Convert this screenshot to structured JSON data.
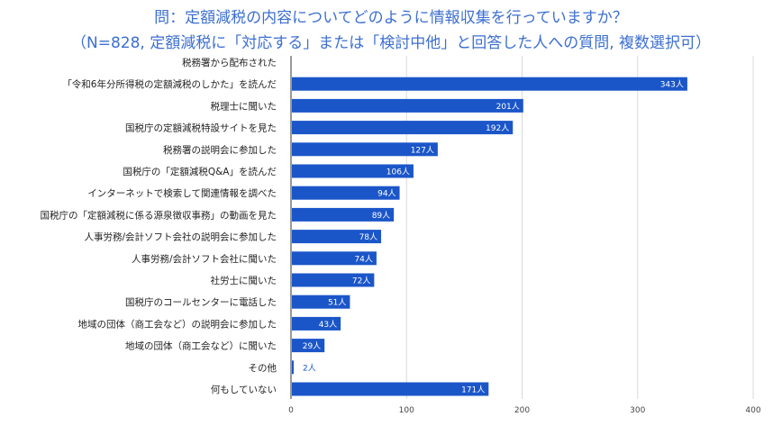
{
  "chart_data": {
    "type": "bar",
    "orientation": "horizontal",
    "title": "問：定額減税の内容についてどのように情報収集を行っていますか？",
    "subtitle": "（N=828, 定額減税に「対応する」または「検討中他」と回答した人への質問, 複数選択可）",
    "unit_suffix": "人",
    "categories": [
      "税務署から配布された",
      "「令和6年分所得税の定額減税のしかた」を読んだ",
      "税理士に聞いた",
      "国税庁の定額減税特設サイトを見た",
      "税務署の説明会に参加した",
      "国税庁の「定額減税Q&A」を読んだ",
      "インターネットで検索して関連情報を調べた",
      "国税庁の「定額減税に係る源泉徴収事務」の動画を見た",
      "人事労務/会計ソフト会社の説明会に参加した",
      "人事労務/会計ソフト会社に聞いた",
      "社労士に聞いた",
      "国税庁のコールセンターに電話した",
      "地域の団体（商工会など）の説明会に参加した",
      "地域の団体（商工会など）に聞いた",
      "その他",
      "何もしていない"
    ],
    "values": [
      null,
      343,
      201,
      192,
      127,
      106,
      94,
      89,
      78,
      74,
      72,
      51,
      43,
      29,
      2,
      171
    ],
    "data_labels": [
      "",
      "343人",
      "201人",
      "192人",
      "127人",
      "106人",
      "94人",
      "89人",
      "78人",
      "74人",
      "72人",
      "51人",
      "43人",
      "29人",
      "2人",
      "171人"
    ],
    "xlim": [
      0,
      400
    ],
    "xticks": [
      0,
      100,
      200,
      300,
      400
    ],
    "grid": true,
    "legend": "none",
    "colors": {
      "bar": "#1b56c9",
      "label_inside": "#ffffff",
      "label_outside": "#1b56c9",
      "grid": "#d9d9d9",
      "axis": "#333333"
    }
  }
}
